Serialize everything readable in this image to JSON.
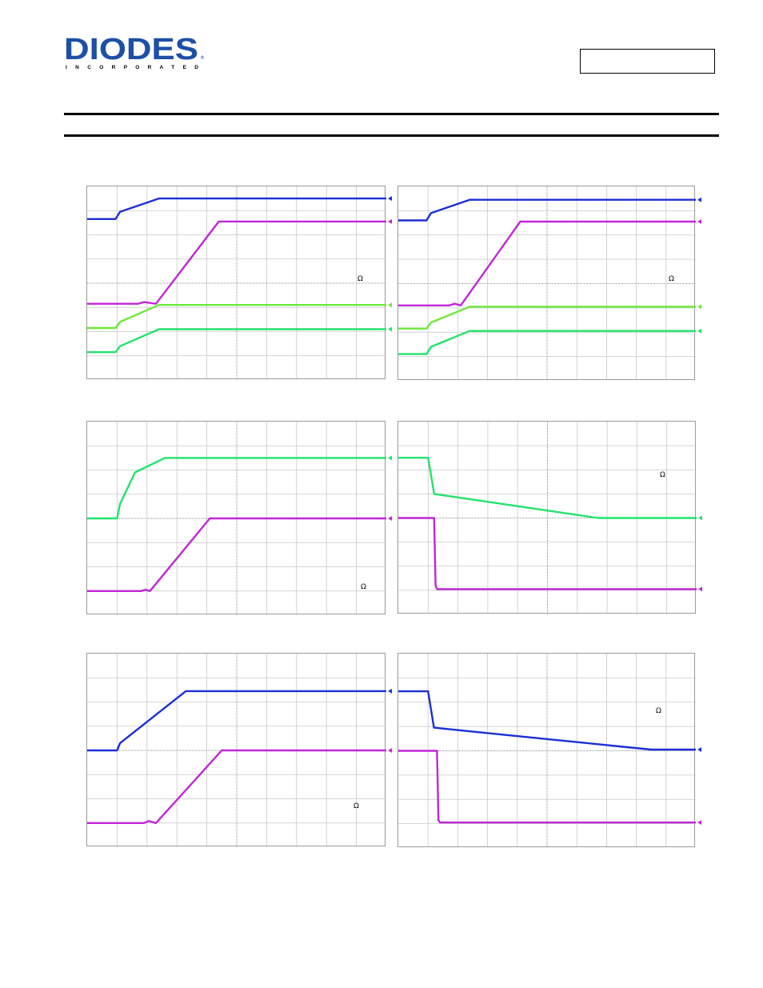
{
  "header": {
    "logo": {
      "wordmark": "DIODES",
      "tagline": "INCORPORATED",
      "color": "#1e4fa6"
    },
    "part_number": ""
  },
  "colors": {
    "blue": "#1b2fd6",
    "magenta": "#c026d6",
    "light_green": "#6ee83a",
    "green": "#22e36b",
    "grid": "#c8c8c8",
    "center": "#8a8a8a"
  },
  "chart_data": [
    {
      "type": "line",
      "grid": true,
      "divisions": [
        10,
        8
      ],
      "annotation": "Ω",
      "series": [
        {
          "color": "blue",
          "points": [
            [
              0,
              2.65
            ],
            [
              0.95,
              2.65
            ],
            [
              1.1,
              2.95
            ],
            [
              2.4,
              3.5
            ],
            [
              10,
              3.5
            ]
          ]
        },
        {
          "color": "magenta",
          "points": [
            [
              0,
              -0.85
            ],
            [
              1.7,
              -0.85
            ],
            [
              1.9,
              -0.78
            ],
            [
              2.3,
              -0.85
            ],
            [
              4.4,
              2.55
            ],
            [
              10,
              2.55
            ]
          ]
        },
        {
          "color": "light_green",
          "points": [
            [
              0,
              -1.85
            ],
            [
              0.95,
              -1.85
            ],
            [
              1.1,
              -1.6
            ],
            [
              2.4,
              -0.9
            ],
            [
              10,
              -0.9
            ]
          ]
        },
        {
          "color": "green",
          "points": [
            [
              0,
              -2.85
            ],
            [
              0.95,
              -2.85
            ],
            [
              1.1,
              -2.6
            ],
            [
              2.4,
              -1.9
            ],
            [
              10,
              -1.9
            ]
          ]
        }
      ]
    },
    {
      "type": "line",
      "grid": true,
      "divisions": [
        10,
        8
      ],
      "annotation": "Ω",
      "series": [
        {
          "color": "blue",
          "points": [
            [
              0,
              2.6
            ],
            [
              0.95,
              2.6
            ],
            [
              1.1,
              2.9
            ],
            [
              2.4,
              3.45
            ],
            [
              10,
              3.45
            ]
          ]
        },
        {
          "color": "magenta",
          "points": [
            [
              0,
              -0.9
            ],
            [
              1.7,
              -0.9
            ],
            [
              1.9,
              -0.83
            ],
            [
              2.1,
              -0.9
            ],
            [
              4.1,
              2.55
            ],
            [
              10,
              2.55
            ]
          ]
        },
        {
          "color": "light_green",
          "points": [
            [
              0,
              -1.85
            ],
            [
              0.95,
              -1.85
            ],
            [
              1.1,
              -1.6
            ],
            [
              2.4,
              -0.95
            ],
            [
              10,
              -0.95
            ]
          ]
        },
        {
          "color": "green",
          "points": [
            [
              0,
              -2.9
            ],
            [
              0.95,
              -2.9
            ],
            [
              1.1,
              -2.6
            ],
            [
              2.4,
              -1.95
            ],
            [
              10,
              -1.95
            ]
          ]
        }
      ]
    },
    {
      "type": "line",
      "grid": true,
      "divisions": [
        10,
        8
      ],
      "annotation": "Ω",
      "series": [
        {
          "color": "green",
          "points": [
            [
              0,
              0
            ],
            [
              1.0,
              0
            ],
            [
              1.1,
              0.6
            ],
            [
              1.6,
              1.9
            ],
            [
              2.6,
              2.5
            ],
            [
              10,
              2.5
            ]
          ]
        },
        {
          "color": "magenta",
          "points": [
            [
              0,
              -3
            ],
            [
              1.8,
              -3
            ],
            [
              1.95,
              -2.95
            ],
            [
              2.1,
              -3
            ],
            [
              4.1,
              0
            ],
            [
              10,
              0
            ]
          ]
        }
      ]
    },
    {
      "type": "line",
      "grid": true,
      "divisions": [
        10,
        8
      ],
      "annotation": "Ω",
      "series": [
        {
          "color": "green",
          "points": [
            [
              0,
              2.5
            ],
            [
              1.0,
              2.5
            ],
            [
              1.2,
              1.0
            ],
            [
              6.7,
              0
            ],
            [
              10,
              0
            ]
          ]
        },
        {
          "color": "magenta",
          "points": [
            [
              0,
              0
            ],
            [
              1.2,
              0
            ],
            [
              1.25,
              -2.8
            ],
            [
              1.3,
              -2.95
            ],
            [
              10,
              -2.95
            ]
          ]
        }
      ]
    },
    {
      "type": "line",
      "grid": true,
      "divisions": [
        10,
        8
      ],
      "annotation": "Ω",
      "series": [
        {
          "color": "blue",
          "points": [
            [
              0,
              0
            ],
            [
              1.0,
              0
            ],
            [
              1.1,
              0.3
            ],
            [
              3.3,
              2.45
            ],
            [
              10,
              2.45
            ]
          ]
        },
        {
          "color": "magenta",
          "points": [
            [
              0,
              -3
            ],
            [
              1.9,
              -3
            ],
            [
              2.05,
              -2.92
            ],
            [
              2.3,
              -3
            ],
            [
              4.5,
              0
            ],
            [
              10,
              0
            ]
          ]
        }
      ]
    },
    {
      "type": "line",
      "grid": true,
      "divisions": [
        10,
        8
      ],
      "annotation": "Ω",
      "series": [
        {
          "color": "blue",
          "points": [
            [
              0,
              2.45
            ],
            [
              1.0,
              2.45
            ],
            [
              1.2,
              0.95
            ],
            [
              8.5,
              0.05
            ],
            [
              10,
              0.05
            ]
          ]
        },
        {
          "color": "magenta",
          "points": [
            [
              0,
              0
            ],
            [
              1.3,
              0
            ],
            [
              1.35,
              -2.85
            ],
            [
              1.4,
              -2.95
            ],
            [
              10,
              -2.95
            ]
          ]
        }
      ]
    }
  ]
}
